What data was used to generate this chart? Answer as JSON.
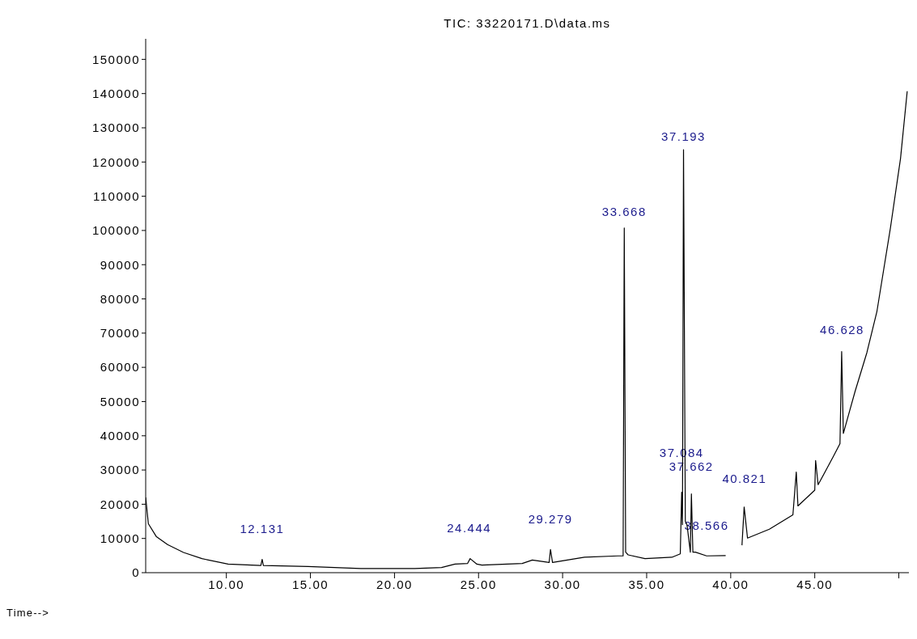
{
  "chart_data": {
    "type": "line",
    "title": "TIC: 33220171.D\\data.ms",
    "xlabel": "Time-->",
    "x": [
      5.2,
      5.36,
      5.84,
      6.5,
      7.45,
      8.55,
      10.1,
      12.05,
      12.13,
      12.2,
      14.86,
      18.0,
      21.2,
      22.8,
      23.6,
      24.35,
      24.5,
      24.9,
      25.2,
      27.6,
      28.2,
      29.2,
      29.28,
      29.4,
      31.3,
      33.3,
      33.6,
      33.668,
      33.75,
      33.9,
      34.9,
      36.5,
      37.0,
      37.084,
      37.13,
      37.193,
      37.3,
      37.4,
      37.6,
      37.662,
      37.75,
      37.9,
      38.566,
      39.7,
      39.75,
      40.67,
      40.8,
      41.0,
      42.3,
      43.7,
      43.9,
      44.0,
      45.0,
      45.05,
      45.2,
      46.1,
      46.5,
      46.6,
      46.7,
      47.4,
      48.1,
      48.7,
      49.5,
      50.1,
      50.5
    ],
    "series": [
      {
        "color": "#000000",
        "values": [
          22000,
          14300,
          10500,
          8200,
          5900,
          4100,
          2500,
          2100,
          3900,
          2100,
          1800,
          1200,
          1200,
          1500,
          2500,
          2700,
          4100,
          2500,
          2200,
          2700,
          3700,
          3000,
          6800,
          3000,
          4500,
          4900,
          4900,
          100700,
          6000,
          5200,
          4100,
          4500,
          5500,
          23500,
          14000,
          123600,
          15000,
          14000,
          6000,
          23000,
          6000,
          6000,
          4900,
          5000,
          null,
          8000,
          19200,
          10100,
          12700,
          16900,
          29400,
          19500,
          24100,
          32800,
          25700,
          33900,
          37700,
          64600,
          40700,
          53000,
          64300,
          76400,
          100700,
          121000,
          140700
        ]
      }
    ],
    "xlim": [
      5.2,
      50.6
    ],
    "xticks": [
      {
        "value": 10,
        "label": "10.00"
      },
      {
        "value": 15,
        "label": "15.00"
      },
      {
        "value": 20,
        "label": "20.00"
      },
      {
        "value": 25,
        "label": "25.00"
      },
      {
        "value": 30,
        "label": "30.00"
      },
      {
        "value": 35,
        "label": "35.00"
      },
      {
        "value": 40,
        "label": "40.00"
      },
      {
        "value": 45,
        "label": "45.00"
      },
      {
        "value": 50,
        "label": null
      }
    ],
    "ylim": [
      0,
      156000
    ],
    "yticks": [
      0,
      10000,
      20000,
      30000,
      40000,
      50000,
      60000,
      70000,
      80000,
      90000,
      100000,
      110000,
      120000,
      130000,
      140000,
      150000
    ],
    "marker": "none",
    "line_style": "solid",
    "annotations": [
      {
        "text": "12.131",
        "x": 12.131,
        "y": 3900
      },
      {
        "text": "24.444",
        "x": 24.444,
        "y": 4100
      },
      {
        "text": "29.279",
        "x": 29.279,
        "y": 6800
      },
      {
        "text": "33.668",
        "x": 33.668,
        "y": 100700
      },
      {
        "text": "37.193",
        "x": 37.193,
        "y": 123600
      },
      {
        "text": "37.662",
        "x": 37.662,
        "y": 23000
      },
      {
        "text": "37.084",
        "x": 37.084,
        "y": 23500
      },
      {
        "text": "38.566",
        "x": 38.566,
        "y": 4900
      },
      {
        "text": "40.821",
        "x": 40.821,
        "y": 19200
      },
      {
        "text": "46.628",
        "x": 46.628,
        "y": 64600
      }
    ]
  }
}
